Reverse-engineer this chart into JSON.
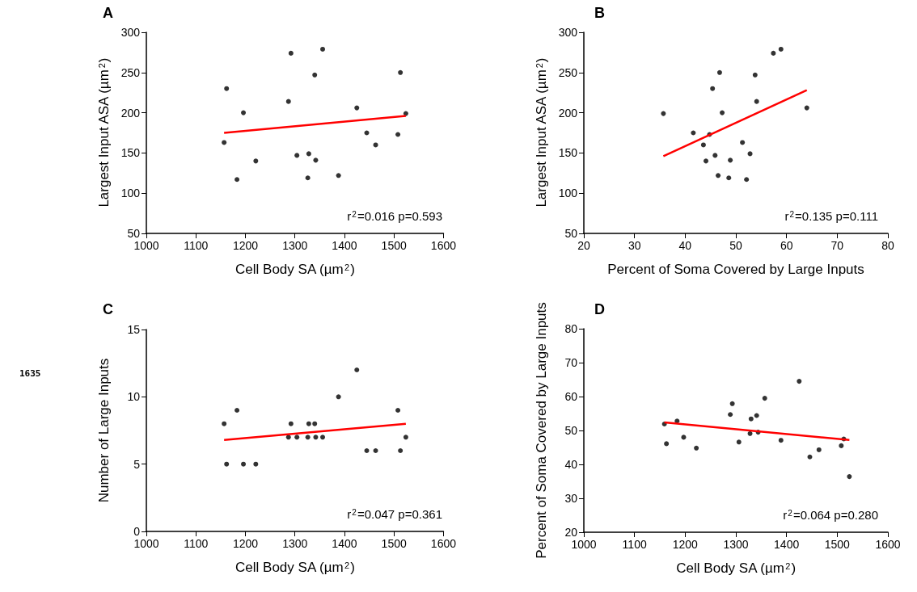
{
  "chart_data": [
    {
      "type": "scatter",
      "title": "A",
      "xlabel": "Cell Body SA (µm$^{2}$)",
      "ylabel": "Largest Input ASA (µm$^{2}$)",
      "xlim": [
        1000,
        1600
      ],
      "xticks": [
        1000,
        1100,
        1200,
        1300,
        1400,
        1500,
        1600
      ],
      "ylim": [
        50,
        300
      ],
      "yticks": [
        50,
        100,
        150,
        200,
        250,
        300
      ],
      "grid": false,
      "annotations": [
        "r$^{2}$=0.016 p=0.593"
      ],
      "series": [
        {
          "color": "#000000",
          "x": [
            1157,
            1162,
            1183,
            1196,
            1221,
            1287,
            1292,
            1304,
            1326,
            1328,
            1340,
            1342,
            1356,
            1388,
            1425,
            1445,
            1463,
            1508,
            1513,
            1524
          ],
          "values": [
            163,
            230,
            117,
            200,
            140,
            214,
            274,
            147,
            119,
            149,
            247,
            141,
            279,
            122,
            206,
            175,
            160,
            173,
            250,
            199
          ]
        },
        {
          "type": "line",
          "color": "#ff0000",
          "x": [
            1157,
            1524
          ],
          "values": [
            175,
            196
          ]
        }
      ]
    },
    {
      "type": "scatter",
      "title": "B",
      "xlabel": "Percent of Soma Covered by Large Inputs",
      "ylabel": "Largest Input ASA (µm$^{2}$)",
      "xlim": [
        20,
        80
      ],
      "xticks": [
        20,
        30,
        40,
        50,
        60,
        70,
        80
      ],
      "ylim": [
        50,
        300
      ],
      "yticks": [
        50,
        100,
        150,
        200,
        250,
        300
      ],
      "grid": false,
      "annotations": [
        "r$^{2}$=0.135 p=0.111"
      ],
      "series": [
        {
          "color": "#000000",
          "x": [
            35.7,
            41.6,
            43.6,
            44.1,
            44.8,
            45.4,
            45.9,
            46.5,
            46.8,
            47.3,
            48.6,
            48.9,
            51.3,
            52.1,
            52.8,
            53.8,
            54.1,
            57.4,
            58.9,
            64.0
          ],
          "values": [
            199,
            175,
            160,
            140,
            173,
            230,
            147,
            122,
            250,
            200,
            119,
            141,
            163,
            117,
            149,
            247,
            214,
            274,
            279,
            206
          ]
        },
        {
          "type": "line",
          "color": "#ff0000",
          "x": [
            35.7,
            64.0
          ],
          "values": [
            146,
            228
          ]
        }
      ]
    },
    {
      "type": "scatter",
      "title": "C",
      "xlabel": "Cell Body SA (µm$^{2}$)",
      "ylabel": "Number of Large Inputs",
      "xlim": [
        1000,
        1600
      ],
      "xticks": [
        1000,
        1100,
        1200,
        1300,
        1400,
        1500,
        1600
      ],
      "ylim": [
        0,
        15
      ],
      "yticks": [
        0,
        5,
        10,
        15
      ],
      "grid": false,
      "annotations": [
        "r$^{2}$=0.047 p=0.361",
        "1635"
      ],
      "series": [
        {
          "color": "#000000",
          "x": [
            1157,
            1162,
            1183,
            1196,
            1221,
            1287,
            1292,
            1304,
            1326,
            1328,
            1340,
            1342,
            1356,
            1388,
            1425,
            1445,
            1463,
            1508,
            1513,
            1524
          ],
          "values": [
            8,
            5,
            9,
            5,
            5,
            7,
            8,
            7,
            7,
            8,
            8,
            7,
            7,
            10,
            12,
            6,
            6,
            9,
            6,
            7
          ]
        },
        {
          "type": "line",
          "color": "#ff0000",
          "x": [
            1157,
            1524
          ],
          "values": [
            6.8,
            8.0
          ]
        }
      ]
    },
    {
      "type": "scatter",
      "title": "D",
      "xlabel": "Cell Body SA (µm$^{2}$)",
      "ylabel": "Percent of Soma Covered by Large Inputs",
      "xlim": [
        1000,
        1600
      ],
      "xticks": [
        1000,
        1100,
        1200,
        1300,
        1400,
        1500,
        1600
      ],
      "ylim": [
        20,
        80
      ],
      "yticks": [
        20,
        30,
        40,
        50,
        60,
        70,
        80
      ],
      "grid": false,
      "annotations": [
        "r$^{2}$=0.064 p=0.280"
      ],
      "series": [
        {
          "color": "#000000",
          "x": [
            1159,
            1163,
            1184,
            1197,
            1222,
            1289,
            1293,
            1306,
            1328,
            1330,
            1341,
            1344,
            1357,
            1389,
            1425,
            1446,
            1464,
            1508,
            1513,
            1524
          ],
          "values": [
            51.9,
            46.1,
            52.8,
            48.0,
            44.8,
            54.7,
            57.9,
            46.6,
            49.1,
            53.4,
            54.4,
            49.5,
            59.5,
            47.1,
            64.5,
            42.2,
            44.3,
            45.5,
            47.5,
            36.4
          ]
        },
        {
          "type": "line",
          "color": "#ff0000",
          "x": [
            1159,
            1524
          ],
          "values": [
            52.4,
            47.2
          ]
        }
      ]
    }
  ]
}
